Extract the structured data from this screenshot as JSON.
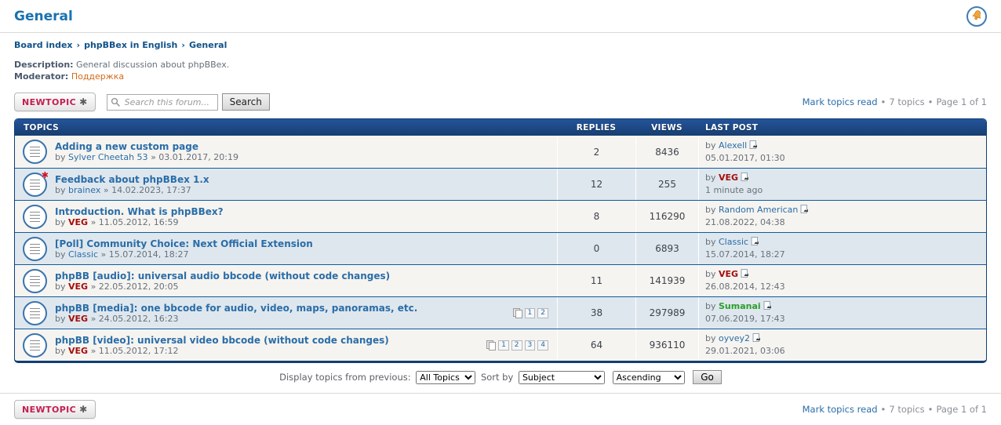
{
  "page": {
    "title": "General"
  },
  "breadcrumb": {
    "items": [
      "Board index",
      "phpBBex in English",
      "General"
    ],
    "separator": "›"
  },
  "description": {
    "label": "Description:",
    "text": "General discussion about phpBBex."
  },
  "moderator": {
    "label": "Moderator:",
    "name": "Поддержка"
  },
  "toolbar": {
    "new_topic_label": "NEWTOPIC",
    "new_topic_star": "✱",
    "search_placeholder": "Search this forum...",
    "search_button": "Search",
    "mark_read": "Mark topics read",
    "bullet": "•",
    "topic_count": "7 topics",
    "page_info": "Page 1 of 1"
  },
  "table": {
    "headers": {
      "topics": "TOPICS",
      "replies": "REPLIES",
      "views": "VIEWS",
      "last_post": "LAST POST"
    },
    "by_label": "by",
    "date_separator": "»",
    "unread_star": "✱",
    "rows": [
      {
        "title": "Adding a new custom page",
        "author": "Sylver Cheetah 53",
        "author_style": "",
        "date": "03.01.2017, 20:19",
        "replies": "2",
        "views": "8436",
        "last_author": "Alexell",
        "last_author_style": "",
        "last_date": "05.01.2017, 01:30",
        "unread": false,
        "pages": []
      },
      {
        "title": "Feedback about phpBBex 1.x",
        "author": "brainex",
        "author_style": "",
        "date": "14.02.2023, 17:37",
        "replies": "12",
        "views": "255",
        "last_author": "VEG",
        "last_author_style": "veg",
        "last_date": "1 minute ago",
        "unread": true,
        "pages": []
      },
      {
        "title": "Introduction. What is phpBBex?",
        "author": "VEG",
        "author_style": "veg",
        "date": "11.05.2012, 16:59",
        "replies": "8",
        "views": "116290",
        "last_author": "Random American",
        "last_author_style": "",
        "last_date": "21.08.2022, 04:38",
        "unread": false,
        "pages": []
      },
      {
        "title": "[Poll] Community Choice: Next Official Extension",
        "author": "Classic",
        "author_style": "",
        "date": "15.07.2014, 18:27",
        "replies": "0",
        "views": "6893",
        "last_author": "Classic",
        "last_author_style": "",
        "last_date": "15.07.2014, 18:27",
        "unread": false,
        "pages": []
      },
      {
        "title": "phpBB [audio]: universal audio bbcode (without code changes)",
        "author": "VEG",
        "author_style": "veg",
        "date": "22.05.2012, 20:05",
        "replies": "11",
        "views": "141939",
        "last_author": "VEG",
        "last_author_style": "veg",
        "last_date": "26.08.2014, 12:43",
        "unread": false,
        "pages": []
      },
      {
        "title": "phpBB [media]: one bbcode for audio, video, maps, panoramas, etc.",
        "author": "VEG",
        "author_style": "veg",
        "date": "24.05.2012, 16:23",
        "replies": "38",
        "views": "297989",
        "last_author": "Sumanai",
        "last_author_style": "green",
        "last_date": "07.06.2019, 17:43",
        "unread": false,
        "pages": [
          "1",
          "2"
        ]
      },
      {
        "title": "phpBB [video]: universal video bbcode (without code changes)",
        "author": "VEG",
        "author_style": "veg",
        "date": "11.05.2012, 17:12",
        "replies": "64",
        "views": "936110",
        "last_author": "oyvey2",
        "last_author_style": "",
        "last_date": "29.01.2021, 03:06",
        "unread": false,
        "pages": [
          "1",
          "2",
          "3",
          "4"
        ]
      }
    ]
  },
  "display_controls": {
    "label": "Display topics from previous:",
    "period_value": "All Topics",
    "sort_label": "Sort by",
    "sort_value": "Subject",
    "dir_value": "Ascending",
    "go_label": "Go"
  },
  "colors": {
    "navy-dark": "#0f3e74",
    "header-top": "#24549a",
    "header-bottom": "#173e72",
    "row-line": "#0f5b9d",
    "row-odd": "#f6f4f0",
    "row-even": "#dfe7ee",
    "link": "#2a6da8",
    "crumb": "#105289",
    "title": "#1a72b0",
    "veg": "#a50d0d",
    "green": "#2b9e2b",
    "orange": "#d16a1a",
    "newtopic": "#c41e4f",
    "meta": "#68707a"
  }
}
